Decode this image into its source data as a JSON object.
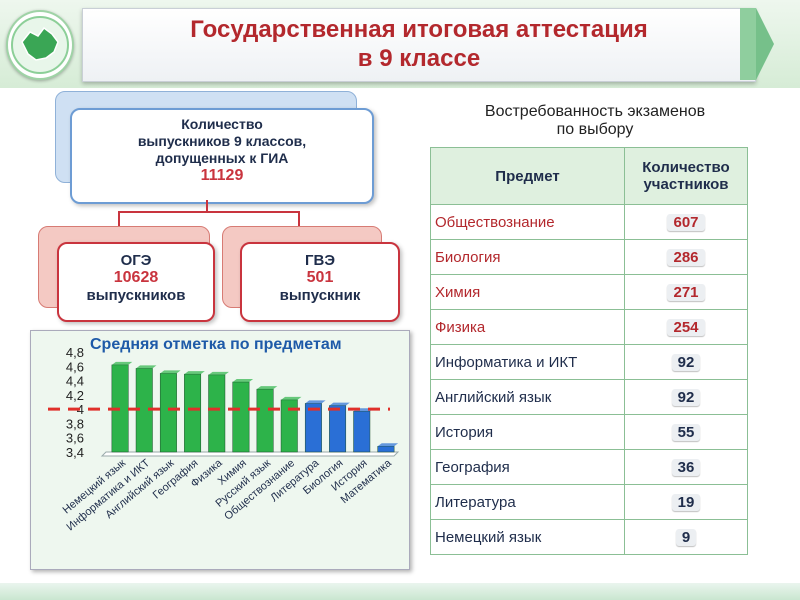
{
  "header": {
    "title_line1": "Государственная итоговая аттестация",
    "title_line2": "в 9 классе"
  },
  "org": {
    "top_text_line1": "Количество",
    "top_text_line2": "выпускников 9 классов,",
    "top_text_line3": "допущенных к ГИА",
    "top_number": "11129",
    "ogi_label": "ОГЭ",
    "ogi_number": "10628",
    "ogi_unit": "выпускников",
    "gve_label": "ГВЭ",
    "gve_number": "501",
    "gve_unit": "выпускник"
  },
  "table": {
    "title_line1": "Востребованность экзаменов",
    "title_line2": "по выбору",
    "col_subject": "Предмет",
    "col_count_line1": "Количество",
    "col_count_line2": "участников",
    "rows": [
      {
        "subject": "Обществознание",
        "count": "607",
        "highlight": true
      },
      {
        "subject": "Биология",
        "count": "286",
        "highlight": true
      },
      {
        "subject": "Химия",
        "count": "271",
        "highlight": true
      },
      {
        "subject": "Физика",
        "count": "254",
        "highlight": true
      },
      {
        "subject": "Информатика и ИКТ",
        "count": "92",
        "highlight": false
      },
      {
        "subject": "Английский язык",
        "count": "92",
        "highlight": false
      },
      {
        "subject": "История",
        "count": "55",
        "highlight": false
      },
      {
        "subject": "География",
        "count": "36",
        "highlight": false
      },
      {
        "subject": "Литература",
        "count": "19",
        "highlight": false
      },
      {
        "subject": "Немецкий язык",
        "count": "9",
        "highlight": false
      }
    ]
  },
  "chart_data": {
    "type": "bar",
    "title": "Средняя отметка по предметам",
    "categories": [
      "Немецкий язык",
      "Информатика и ИКТ",
      "Английский язык",
      "География",
      "Физика",
      "Химия",
      "Русский язык",
      "Обществознание",
      "Литература",
      "Биология",
      "История",
      "Математика"
    ],
    "values": [
      4.62,
      4.57,
      4.5,
      4.49,
      4.48,
      4.38,
      4.28,
      4.13,
      4.08,
      4.05,
      3.97,
      3.48
    ],
    "bar_colors": [
      "#2db34a",
      "#2db34a",
      "#2db34a",
      "#2db34a",
      "#2db34a",
      "#2db34a",
      "#2db34a",
      "#2db34a",
      "#2a6fd6",
      "#2a6fd6",
      "#2a6fd6",
      "#2a6fd6"
    ],
    "yticks": [
      "4,8",
      "4,6",
      "4,4",
      "4,2",
      "4",
      "3,8",
      "3,6",
      "3,4"
    ],
    "ylim": [
      3.4,
      4.8
    ],
    "reference_line": 4.0,
    "reference_color": "#e0302a"
  }
}
